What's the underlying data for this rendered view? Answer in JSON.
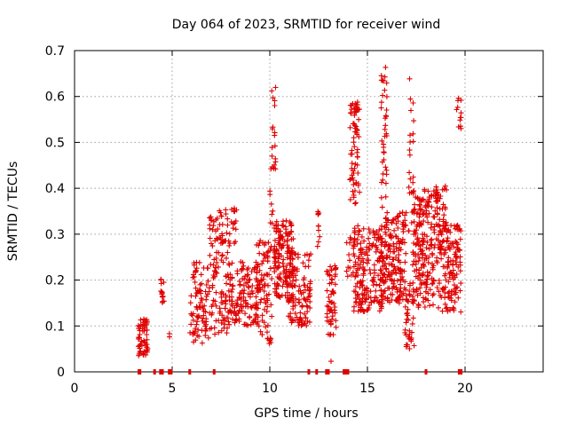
{
  "chart_data": {
    "type": "scatter",
    "title": "Day 064 of 2023, SRMTID for receiver wind",
    "xlabel": "GPS time / hours",
    "ylabel": "SRMTID / TECUs",
    "xlim": [
      0,
      24
    ],
    "ylim": [
      0,
      0.7
    ],
    "xticks": [
      0,
      5,
      10,
      15,
      20
    ],
    "yticks": [
      0,
      0.1,
      0.2,
      0.3,
      0.4,
      0.5,
      0.6,
      0.7
    ],
    "grid": true,
    "marker": "plus",
    "series_color": "#e00000",
    "clusters": [
      {
        "x0": 3.25,
        "x1": 3.75,
        "ymin": 0.035,
        "ymax": 0.115,
        "n": 55
      },
      {
        "x0": 4.4,
        "x1": 4.6,
        "ymin": 0.15,
        "ymax": 0.215,
        "n": 14
      },
      {
        "x0": 4.85,
        "x1": 4.95,
        "ymin": 0.075,
        "ymax": 0.085,
        "n": 2
      },
      {
        "x0": 5.9,
        "x1": 6.9,
        "ymin": 0.06,
        "ymax": 0.24,
        "n": 90
      },
      {
        "x0": 6.9,
        "x1": 7.9,
        "ymin": 0.08,
        "ymax": 0.34,
        "n": 100
      },
      {
        "x0": 7.1,
        "x1": 7.3,
        "ymin": 0.2,
        "ymax": 0.26,
        "n": 8
      },
      {
        "x0": 7.3,
        "x1": 8.3,
        "ymin": 0.25,
        "ymax": 0.36,
        "n": 30
      },
      {
        "x0": 7.9,
        "x1": 9.4,
        "ymin": 0.1,
        "ymax": 0.24,
        "n": 130
      },
      {
        "x0": 9.3,
        "x1": 10.1,
        "ymin": 0.06,
        "ymax": 0.29,
        "n": 90
      },
      {
        "x0": 10.0,
        "x1": 10.2,
        "ymin": 0.32,
        "ymax": 0.46,
        "n": 10
      },
      {
        "x0": 10.1,
        "x1": 10.3,
        "ymin": 0.44,
        "ymax": 0.64,
        "n": 16
      },
      {
        "x0": 10.2,
        "x1": 11.2,
        "ymin": 0.16,
        "ymax": 0.33,
        "n": 160
      },
      {
        "x0": 10.9,
        "x1": 12.1,
        "ymin": 0.1,
        "ymax": 0.26,
        "n": 110
      },
      {
        "x0": 12.4,
        "x1": 12.6,
        "ymin": 0.27,
        "ymax": 0.35,
        "n": 10
      },
      {
        "x0": 12.9,
        "x1": 13.4,
        "ymin": 0.08,
        "ymax": 0.24,
        "n": 55
      },
      {
        "x0": 13.05,
        "x1": 13.15,
        "ymin": 0.02,
        "ymax": 0.03,
        "n": 1
      },
      {
        "x0": 13.9,
        "x1": 14.3,
        "ymin": 0.2,
        "ymax": 0.3,
        "n": 15
      },
      {
        "x0": 14.1,
        "x1": 14.6,
        "ymin": 0.36,
        "ymax": 0.59,
        "n": 70
      },
      {
        "x0": 14.3,
        "x1": 15.8,
        "ymin": 0.13,
        "ymax": 0.32,
        "n": 200
      },
      {
        "x0": 15.7,
        "x1": 16.0,
        "ymin": 0.35,
        "ymax": 0.67,
        "n": 38
      },
      {
        "x0": 15.8,
        "x1": 17.0,
        "ymin": 0.15,
        "ymax": 0.35,
        "n": 170
      },
      {
        "x0": 16.9,
        "x1": 17.4,
        "ymin": 0.05,
        "ymax": 0.2,
        "n": 40
      },
      {
        "x0": 17.1,
        "x1": 17.4,
        "ymin": 0.3,
        "ymax": 0.64,
        "n": 22
      },
      {
        "x0": 17.3,
        "x1": 18.6,
        "ymin": 0.14,
        "ymax": 0.4,
        "n": 210
      },
      {
        "x0": 18.5,
        "x1": 19.1,
        "ymin": 0.25,
        "ymax": 0.41,
        "n": 50
      },
      {
        "x0": 18.6,
        "x1": 19.8,
        "ymin": 0.13,
        "ymax": 0.32,
        "n": 130
      },
      {
        "x0": 19.55,
        "x1": 19.8,
        "ymin": 0.53,
        "ymax": 0.6,
        "n": 12
      }
    ],
    "zero_points_x": [
      3.3,
      3.35,
      4.1,
      4.4,
      4.5,
      4.85,
      4.95,
      5.9,
      7.15,
      12.0,
      12.4,
      12.9,
      13.0,
      13.8,
      13.9,
      14.0,
      18.0,
      19.7,
      19.8
    ]
  }
}
